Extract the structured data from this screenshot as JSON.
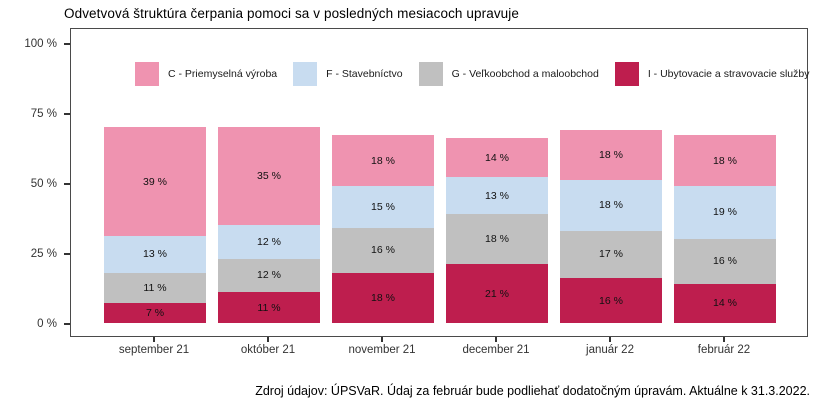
{
  "title": "Odvetvová štruktúra čerpania pomoci sa v posledných mesiacoch upravuje",
  "source_note": "Zdroj údajov: ÚPSVaR. Údaj za február bude podliehať dodatočným úpravám. Aktuálne k 31.3.2022.",
  "chart_data": {
    "type": "bar",
    "stacked": true,
    "unit": "%",
    "grid": false,
    "legend_position": "top-inside",
    "title": "Odvetvová štruktúra čerpania pomoci sa v posledných mesiacoch upravuje",
    "xlabel": "",
    "ylabel": "",
    "categories": [
      "september 21",
      "október 21",
      "november 21",
      "december 21",
      "január 22",
      "február 22"
    ],
    "series": [
      {
        "name": "C - Priemyselná výroba",
        "color": "#EF93B0",
        "values": [
          39,
          35,
          18,
          14,
          18,
          18
        ]
      },
      {
        "name": "F - Stavebníctvo",
        "color": "#C8DCF0",
        "values": [
          13,
          12,
          15,
          13,
          18,
          19
        ]
      },
      {
        "name": "G - Veľkoobchod a maloobchod",
        "color": "#C0C0C0",
        "values": [
          11,
          12,
          16,
          18,
          17,
          16
        ]
      },
      {
        "name": "I - Ubytovacie a stravovacie služby",
        "color": "#BE1E4E",
        "values": [
          7,
          11,
          18,
          21,
          16,
          14
        ]
      }
    ],
    "stack_order_bottom_to_top": [
      "I - Ubytovacie a stravovacie služby",
      "G - Veľkoobchod a maloobchod",
      "F - Stavebníctvo",
      "C - Priemyselná výroba"
    ],
    "bar_label_format": "{value} %",
    "y_axis": {
      "range": [
        0,
        100
      ],
      "tick_values": [
        0,
        25,
        50,
        75,
        100
      ],
      "tick_labels": [
        "0 %",
        "25 %",
        "50 %",
        "75 %",
        "100 %"
      ]
    }
  }
}
